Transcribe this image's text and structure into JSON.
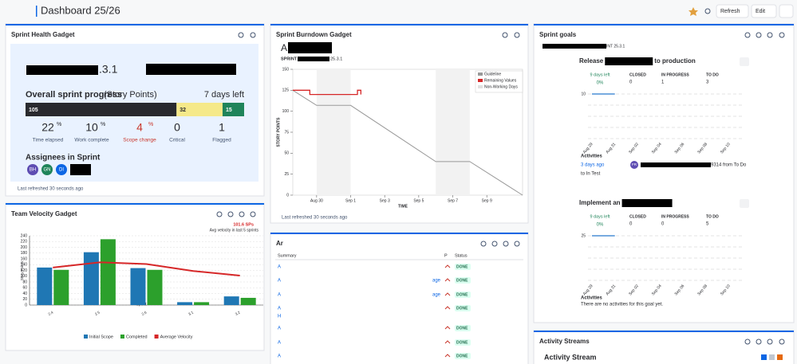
{
  "header": {
    "title": "Dashboard 25/26",
    "refresh": "Refresh",
    "edit": "Edit"
  },
  "sprint_health": {
    "title": "Sprint Health Gadget",
    "sprint_name": ".3.1",
    "progress_label": "Overall sprint progress",
    "progress_unit": "(Story Points)",
    "days_left": "7 days left",
    "progress": {
      "values": [
        105,
        32,
        15
      ],
      "colors": [
        "#292a2e",
        "#f5e989",
        "#1f845a"
      ]
    },
    "stats": [
      {
        "value": 22,
        "unit": "%",
        "label": "Time elapsed"
      },
      {
        "value": 10,
        "unit": "%",
        "label": "Work complete"
      },
      {
        "value": 4,
        "unit": "%",
        "label": "Scope change",
        "color": "#c9372c"
      },
      {
        "value": 0,
        "label": "Critical"
      },
      {
        "value": 1,
        "label": "Flagged"
      }
    ],
    "assignees_title": "Assignees in Sprint",
    "assignees": [
      "BH",
      "GN",
      "DI"
    ],
    "refreshed": "Last refreshed 30 seconds ago"
  },
  "team_velocity": {
    "title": "Team Velocity Gadget",
    "chart_data": {
      "type": "bar",
      "annotation": "101.6 SPs",
      "annotation_note": "Avg velocity in last 5 sprints",
      "x_label": "Sprint",
      "y_label": "Story Points",
      "categories": [
        "2.4",
        "2.5",
        "2.6",
        "3.1",
        "3.2"
      ],
      "ylim": [
        0,
        240
      ],
      "yticks": [
        0,
        20,
        40,
        60,
        80,
        100,
        120,
        140,
        160,
        180,
        200,
        220,
        240
      ],
      "grid": true,
      "series": [
        {
          "name": "Initial Scope",
          "color": "#1f77b4",
          "values": [
            130,
            183,
            128,
            10,
            30
          ]
        },
        {
          "name": "Completed",
          "color": "#2ca02c",
          "values": [
            122,
            228,
            122,
            10,
            25
          ]
        },
        {
          "name": "Average Velocity",
          "type": "line",
          "color": "#d62728",
          "values": [
            130,
            148,
            142,
            118,
            102
          ]
        }
      ]
    }
  },
  "sprint_burndown": {
    "title": "Sprint Burndown Gadget",
    "heading": "A",
    "sprint_prefix": "SPRINT",
    "sprint_suffix": "25.3.1",
    "refreshed": "Last refreshed 30 seconds ago",
    "chart_data": {
      "type": "line",
      "x_label": "TIME",
      "y_label": "STORY POINTS",
      "xlim": [
        -1.4,
        12.1
      ],
      "xticks": [
        {
          "value": 0,
          "label": "Aug 30"
        },
        {
          "value": 2,
          "label": "Sep 1"
        },
        {
          "value": 4,
          "label": "Sep 3"
        },
        {
          "value": 6,
          "label": "Sep 5"
        },
        {
          "value": 8,
          "label": "Sep 7"
        },
        {
          "value": 10,
          "label": "Sep 9"
        }
      ],
      "ylim": [
        0,
        150
      ],
      "yticks": [
        0,
        25,
        50,
        75,
        100,
        125,
        150
      ],
      "non_working": {
        "name": "Non-Working Days",
        "color": "#f2f2f2",
        "ranges": [
          [
            0,
            2
          ],
          [
            7,
            9
          ]
        ]
      },
      "series": [
        {
          "name": "Guideline",
          "color": "#999999",
          "x": [
            -1.4,
            0,
            2,
            7,
            9,
            12.1
          ],
          "values": [
            125,
            107,
            107,
            40,
            40,
            0
          ]
        },
        {
          "name": "Remaining Values",
          "color": "#d62728",
          "x": [
            -1.4,
            -0.4,
            -0.4,
            2.4,
            2.4,
            2.6,
            2.6
          ],
          "values": [
            125,
            125,
            120,
            120,
            125,
            125,
            120
          ]
        }
      ]
    }
  },
  "issues_table": {
    "title": "Ar",
    "headers": [
      "Summary",
      "P",
      "Status"
    ],
    "rows": [
      {
        "summary": "A",
        "status": "DONE"
      },
      {
        "summary": "A",
        "detail": "age",
        "status": "DONE"
      },
      {
        "summary": "A",
        "detail": "age",
        "status": "DONE"
      },
      {
        "summary": "A",
        "summary2": "H",
        "status": "DONE"
      },
      {
        "summary": "A",
        "status": "DONE"
      },
      {
        "summary": "A",
        "status": "DONE"
      },
      {
        "summary": "A",
        "status": "DONE"
      }
    ]
  },
  "sprint_goals": {
    "title": "Sprint goals",
    "sprint_suffix": "INT 25.3.1",
    "goals": [
      {
        "title": "Release",
        "title_end": "to production",
        "days_left": "9 days left",
        "percent": "0%",
        "columns": [
          {
            "label": "CLOSED",
            "value": 0
          },
          {
            "label": "IN PROGRESS",
            "value": 1
          },
          {
            "label": "TO DO",
            "value": 3
          }
        ],
        "chart_data": {
          "type": "line",
          "categories": [
            "Aug 29",
            "Aug 31",
            "Sep 02",
            "Sep 04",
            "Sep 06",
            "Sep 08",
            "Sep 10"
          ],
          "values": [
            10,
            10,
            null,
            null,
            null,
            null,
            null
          ],
          "color": "#4c8fd6",
          "ylim": [
            0,
            10
          ],
          "yticks": [
            10
          ]
        },
        "activities_title": "Activities",
        "activity": {
          "time": "3 days ago",
          "avatar": "FR",
          "text": "9314 from To Do",
          "text2": "to In Test"
        }
      },
      {
        "title": "Implement an",
        "days_left": "9 days left",
        "percent": "0%",
        "columns": [
          {
            "label": "CLOSED",
            "value": 0
          },
          {
            "label": "IN PROGRESS",
            "value": 0
          },
          {
            "label": "TO DO",
            "value": 5
          }
        ],
        "chart_data": {
          "type": "line",
          "categories": [
            "Aug 29",
            "Aug 31",
            "Sep 02",
            "Sep 04",
            "Sep 06",
            "Sep 08",
            "Sep 10"
          ],
          "values": [
            25,
            25,
            null,
            null,
            null,
            null,
            null
          ],
          "color": "#4c8fd6",
          "ylim": [
            0,
            25
          ],
          "yticks": [
            25
          ]
        },
        "activities_title": "Activities",
        "empty": "There are no activities for this goal yet."
      }
    ]
  },
  "activity_streams": {
    "title": "Activity Streams",
    "subtitle": "Activity Stream"
  }
}
